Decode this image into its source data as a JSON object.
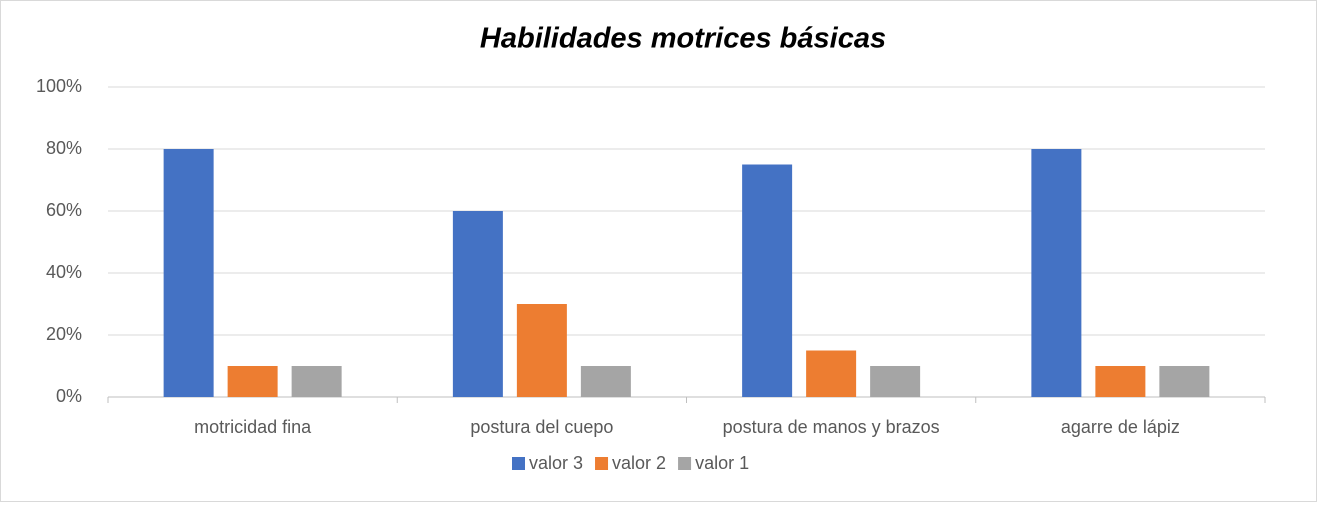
{
  "chart_data": {
    "type": "bar",
    "title": "Habilidades motrices básicas",
    "categories": [
      "motricidad fina",
      "postura del cuepo",
      "postura de manos y brazos",
      "agarre de lápiz"
    ],
    "series": [
      {
        "name": "valor 3",
        "color": "#4472c4",
        "values": [
          80,
          60,
          75,
          80
        ]
      },
      {
        "name": "valor 2",
        "color": "#ed7d31",
        "values": [
          10,
          30,
          15,
          10
        ]
      },
      {
        "name": "valor 1",
        "color": "#a5a5a5",
        "values": [
          10,
          10,
          10,
          10
        ]
      }
    ],
    "ylim": [
      0,
      100
    ],
    "yticks": [
      {
        "value": 0,
        "label": "0%"
      },
      {
        "value": 20,
        "label": "20%"
      },
      {
        "value": 40,
        "label": "40%"
      },
      {
        "value": 60,
        "label": "60%"
      },
      {
        "value": 80,
        "label": "80%"
      },
      {
        "value": 100,
        "label": "100%"
      }
    ],
    "grid": true,
    "legend": "bottom"
  }
}
